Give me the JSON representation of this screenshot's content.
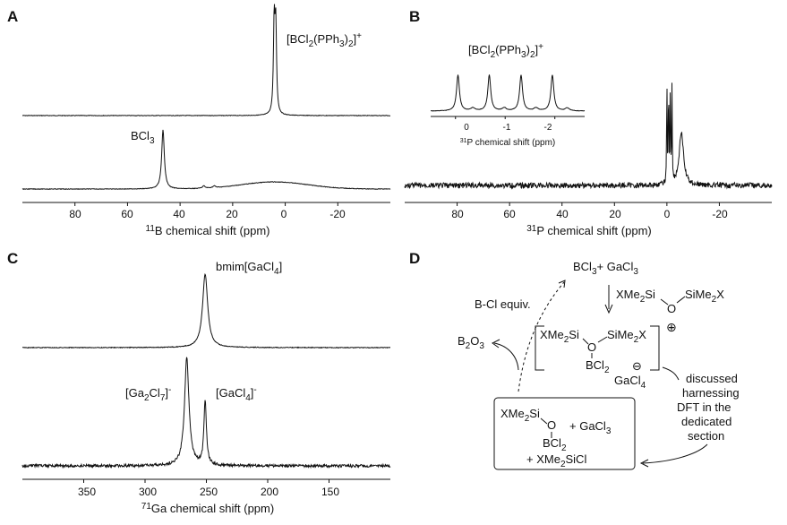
{
  "chart_data": [
    {
      "panel": "A",
      "type": "line",
      "xlabel": "11B chemical shift (ppm)",
      "xlim": [
        100,
        -40
      ],
      "x_reversed": true,
      "x_ticks": [
        80,
        60,
        40,
        20,
        0,
        -20
      ],
      "series": [
        {
          "name": "[BCl2(PPh3)2]+",
          "peaks": [
            {
              "x": 4.2,
              "height": 1.0,
              "width": 0.35
            },
            {
              "x": 3.6,
              "height": 0.95,
              "width": 0.35
            }
          ]
        },
        {
          "name": "BCl3",
          "peaks": [
            {
              "x": 46.5,
              "height": 1.0,
              "width": 0.6
            },
            {
              "x": 31,
              "height": 0.04,
              "width": 0.6
            },
            {
              "x": 27,
              "height": 0.03,
              "width": 0.6
            }
          ],
          "broad_hump": {
            "x": 4,
            "height": 0.12,
            "width": 18
          }
        }
      ],
      "annotations": [
        "[BCl2(PPh3)2]+",
        "BCl3"
      ]
    },
    {
      "panel": "B",
      "type": "line",
      "xlabel": "31P chemical shift (ppm)",
      "xlim": [
        100,
        -40
      ],
      "x_reversed": true,
      "x_ticks": [
        80,
        60,
        40,
        20,
        0,
        -20
      ],
      "series": [
        {
          "name": "[BCl2(PPh3)2]+",
          "peaks": [
            {
              "x": 0.0,
              "height": 1.0
            },
            {
              "x": -0.65,
              "height": 0.97
            },
            {
              "x": -1.3,
              "height": 0.95
            },
            {
              "x": -1.95,
              "height": 0.93
            },
            {
              "x": -5.5,
              "height": 0.5
            }
          ]
        }
      ],
      "inset": {
        "title": "[BCl2(PPh3)2]+",
        "xlabel": "31P chemical shift (ppm)",
        "xlim": [
          0.5,
          -2.6
        ],
        "x_ticks": [
          0,
          -1,
          -2
        ],
        "peaks": [
          -0.05,
          -0.68,
          -1.32,
          -1.95
        ]
      },
      "annotations": [
        "[BCl2(PPh3)2]+"
      ]
    },
    {
      "panel": "C",
      "type": "line",
      "xlabel": "71Ga chemical shift (ppm)",
      "xlim": [
        400,
        100
      ],
      "x_reversed": true,
      "x_ticks": [
        350,
        300,
        250,
        200,
        150
      ],
      "series": [
        {
          "name": "bmim[GaCl4]",
          "peaks": [
            {
              "x": 251,
              "height": 1.0,
              "width": 2.5
            }
          ]
        },
        {
          "name": "[Ga2Cl7]- / [GaCl4]-",
          "peaks": [
            {
              "x": 266,
              "height": 1.0,
              "width": 2.2
            },
            {
              "x": 251,
              "height": 0.6,
              "width": 1.2
            }
          ]
        }
      ],
      "annotations": [
        "bmim[GaCl4]",
        "[Ga2Cl7]-",
        "[GaCl4]-"
      ]
    }
  ],
  "panels": {
    "A": {
      "letter": "A",
      "xlabel_sup": "11",
      "xlabel_rest": "B chemical shift (ppm)",
      "ticks": [
        "80",
        "60",
        "40",
        "20",
        "0",
        "-20"
      ],
      "label_top": {
        "pre": "[BCl",
        "s1": "2",
        "mid": "(PPh",
        "s2": "3",
        "end": ")",
        "s3": "2",
        "close": "]",
        "sup": "+"
      },
      "label_bottom": {
        "pre": "BCl",
        "s1": "3"
      }
    },
    "B": {
      "letter": "B",
      "xlabel_sup": "31",
      "xlabel_rest": "P chemical shift (ppm)",
      "ticks": [
        "80",
        "60",
        "40",
        "20",
        "0",
        "-20"
      ],
      "inset_ticks": [
        "0",
        "-1",
        "-2"
      ],
      "inset_xlabel_sup": "31",
      "inset_xlabel_rest": "P chemical shift (ppm)",
      "inset_label": {
        "pre": "[BCl",
        "s1": "2",
        "mid": "(PPh",
        "s2": "3",
        "end": ")",
        "s3": "2",
        "close": "]",
        "sup": "+"
      }
    },
    "C": {
      "letter": "C",
      "xlabel_sup": "71",
      "xlabel_rest": "Ga chemical shift (ppm)",
      "ticks": [
        "350",
        "300",
        "250",
        "200",
        "150"
      ],
      "label_top": {
        "pre": "bmim[GaCl",
        "s1": "4",
        "close": "]"
      },
      "label_left": {
        "pre": "[Ga",
        "s1": "2",
        "mid": "Cl",
        "s2": "7",
        "close": "]",
        "sup": "-"
      },
      "label_right": {
        "pre": "[GaCl",
        "s1": "4",
        "close": "]",
        "sup": "-"
      }
    },
    "D": {
      "letter": "D",
      "reactants": {
        "a": "BCl",
        "a_sub": "3",
        "b": "+ GaCl",
        "b_sub": "3"
      },
      "siloxane": {
        "left": "XMe",
        "left_sub": "2",
        "left_end": "Si",
        "o": "O",
        "right": "SiMe",
        "right_sub": "2",
        "right_end": "X"
      },
      "intermediate": {
        "left": "XMe",
        "left_sub": "2",
        "left_end": "Si",
        "o": "O",
        "right": "SiMe",
        "right_sub": "2",
        "right_end": "X",
        "b": "BCl",
        "b_sub": "2",
        "anion": "GaCl",
        "anion_sub": "4",
        "plus": "⊕",
        "minus": "⊖"
      },
      "bcl_equiv": "B-Cl equiv.",
      "b2o3": {
        "a": "B",
        "s1": "2",
        "b": "O",
        "s2": "3"
      },
      "note_lines": [
        "discussed",
        "harnessing",
        "DFT in the",
        "dedicated",
        "section"
      ],
      "product": {
        "left": "XMe",
        "left_sub": "2",
        "left_end": "Si",
        "o": "O",
        "gacl": "+ GaCl",
        "gacl_sub": "3",
        "b": "BCl",
        "b_sub": "2",
        "byproduct": "+ XMe",
        "byproduct_sub": "2",
        "byproduct_end": "SiCl"
      }
    }
  }
}
